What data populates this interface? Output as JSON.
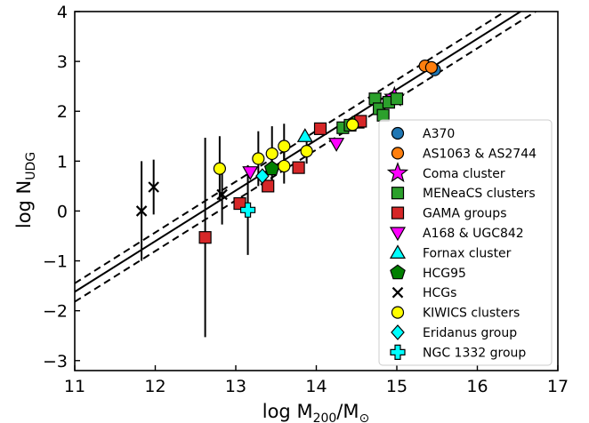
{
  "chart_data": {
    "type": "scatter",
    "xlabel": "log M200/M⊙",
    "ylabel": "log NUDG",
    "xlim": [
      11,
      17
    ],
    "ylim": [
      -3.2,
      4
    ],
    "xticks": [
      11,
      12,
      13,
      14,
      15,
      16,
      17
    ],
    "yticks": [
      -3,
      -2,
      -1,
      0,
      1,
      2,
      3,
      4
    ],
    "grid": false,
    "legend_position": "lower-right",
    "fit_lines": [
      {
        "style": "solid",
        "points": [
          [
            11,
            -1.62
          ],
          [
            17,
            4.47
          ]
        ]
      },
      {
        "style": "dashed",
        "points": [
          [
            11,
            -1.45
          ],
          [
            17,
            4.67
          ]
        ]
      },
      {
        "style": "dashed",
        "points": [
          [
            11,
            -1.82
          ],
          [
            17,
            4.28
          ]
        ]
      }
    ],
    "series": [
      {
        "name": "A370",
        "marker": "circle",
        "color": "#1f77b4",
        "points": [
          {
            "x": 15.47,
            "y": 2.83
          }
        ]
      },
      {
        "name": "AS1063 & AS2744",
        "marker": "circle",
        "color": "#ff7f0e",
        "points": [
          {
            "x": 15.35,
            "y": 2.91
          },
          {
            "x": 15.43,
            "y": 2.88
          }
        ]
      },
      {
        "name": "Coma cluster",
        "marker": "star",
        "color": "#ff00ff",
        "points": [
          {
            "x": 14.97,
            "y": 2.28
          }
        ]
      },
      {
        "name": "MENeaCS clusters",
        "marker": "square",
        "color": "#2ca02c",
        "points": [
          {
            "x": 14.33,
            "y": 1.67
          },
          {
            "x": 14.42,
            "y": 1.72
          },
          {
            "x": 14.52,
            "y": 1.78
          },
          {
            "x": 14.73,
            "y": 2.25
          },
          {
            "x": 14.78,
            "y": 2.05
          },
          {
            "x": 14.83,
            "y": 1.92
          },
          {
            "x": 14.9,
            "y": 2.18
          },
          {
            "x": 15.0,
            "y": 2.25
          }
        ]
      },
      {
        "name": "GAMA groups",
        "marker": "square",
        "color": "#d62728",
        "points": [
          {
            "x": 12.62,
            "y": -0.53,
            "yerr": 2.0
          },
          {
            "x": 13.05,
            "y": 0.15
          },
          {
            "x": 13.4,
            "y": 0.5
          },
          {
            "x": 13.78,
            "y": 0.87
          },
          {
            "x": 14.05,
            "y": 1.65
          },
          {
            "x": 14.55,
            "y": 1.8
          }
        ]
      },
      {
        "name": "A168 & UGC842",
        "marker": "triangle-down",
        "color": "#ff00ff",
        "points": [
          {
            "x": 13.18,
            "y": 0.78
          },
          {
            "x": 14.25,
            "y": 1.35
          }
        ]
      },
      {
        "name": "Fornax cluster",
        "marker": "triangle-up",
        "color": "#00ffff",
        "points": [
          {
            "x": 13.86,
            "y": 1.5
          }
        ]
      },
      {
        "name": "HCG95",
        "marker": "pentagon",
        "color": "#008000",
        "points": [
          {
            "x": 13.45,
            "y": 0.85
          }
        ]
      },
      {
        "name": "HCGs",
        "marker": "x",
        "color": "#000000",
        "points": [
          {
            "x": 11.83,
            "y": 0.0,
            "yerr": 1.0
          },
          {
            "x": 11.98,
            "y": 0.48,
            "yerr": 0.55
          },
          {
            "x": 12.83,
            "y": 0.33,
            "yerr": 0.6
          }
        ]
      },
      {
        "name": "KIWICS clusters",
        "marker": "circle",
        "color": "#ffff00",
        "points": [
          {
            "x": 12.8,
            "y": 0.85,
            "yerr": 0.65
          },
          {
            "x": 13.28,
            "y": 1.05,
            "yerr": 0.55
          },
          {
            "x": 13.45,
            "y": 1.15,
            "yerr": 0.55
          },
          {
            "x": 13.6,
            "y": 1.3,
            "yerr": 0.45
          },
          {
            "x": 13.6,
            "y": 0.9,
            "yerr": 0.35
          },
          {
            "x": 13.88,
            "y": 1.2,
            "yerr": 0.25
          },
          {
            "x": 14.45,
            "y": 1.73,
            "yerr": 0.1
          }
        ]
      },
      {
        "name": "Eridanus group",
        "marker": "diamond",
        "color": "#00ffff",
        "points": [
          {
            "x": 13.33,
            "y": 0.7
          }
        ]
      },
      {
        "name": "NGC 1332 group",
        "marker": "plus",
        "color": "#00ffff",
        "points": [
          {
            "x": 13.15,
            "y": 0.02,
            "yerr": 0.9
          }
        ]
      }
    ]
  }
}
